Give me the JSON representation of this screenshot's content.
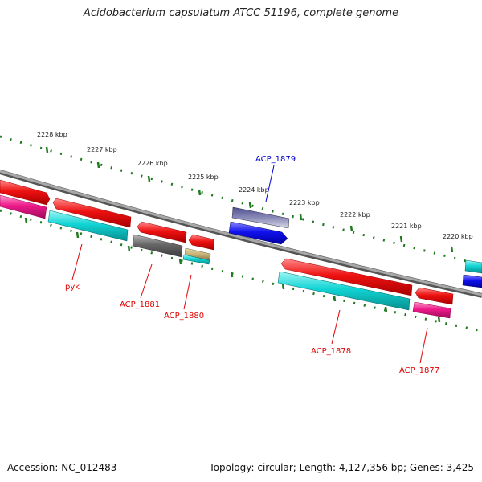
{
  "title": "Acidobacterium capsulatum ATCC 51196, complete genome",
  "footer": {
    "accession": "Accession: NC_012483",
    "summary": "Topology: circular; Length: 4,127,356 bp; Genes: 3,425"
  },
  "colors": {
    "backbone": "#8a8a8a",
    "tick": "#1f7a1f",
    "cds_red": "#ee1111",
    "cds_cyan": "#11d4d4",
    "cds_magenta": "#ee1a8a",
    "cds_blue": "#1111ee",
    "cds_gray": "#666666",
    "cds_purple": "#4c4c8e",
    "cds_tan": "#c8b478",
    "label_red": "#e00000",
    "label_blue": "#0000cc"
  },
  "kbp_labels": [
    "2228 kbp",
    "2227 kbp",
    "2226 kbp",
    "2225 kbp",
    "2224 kbp",
    "2223 kbp",
    "2222 kbp",
    "2221 kbp",
    "2220 kbp"
  ],
  "gene_labels": [
    {
      "id": "pyk",
      "text": "pyk",
      "color": "#e00000"
    },
    {
      "id": "acp-1881",
      "text": "ACP_1881",
      "color": "#e00000"
    },
    {
      "id": "acp-1880",
      "text": "ACP_1880",
      "color": "#e00000"
    },
    {
      "id": "acp-1879",
      "text": "ACP_1879",
      "color": "#0000cc"
    },
    {
      "id": "acp-1878",
      "text": "ACP_1878",
      "color": "#e00000"
    },
    {
      "id": "acp-1877",
      "text": "ACP_1877",
      "color": "#e00000"
    }
  ]
}
